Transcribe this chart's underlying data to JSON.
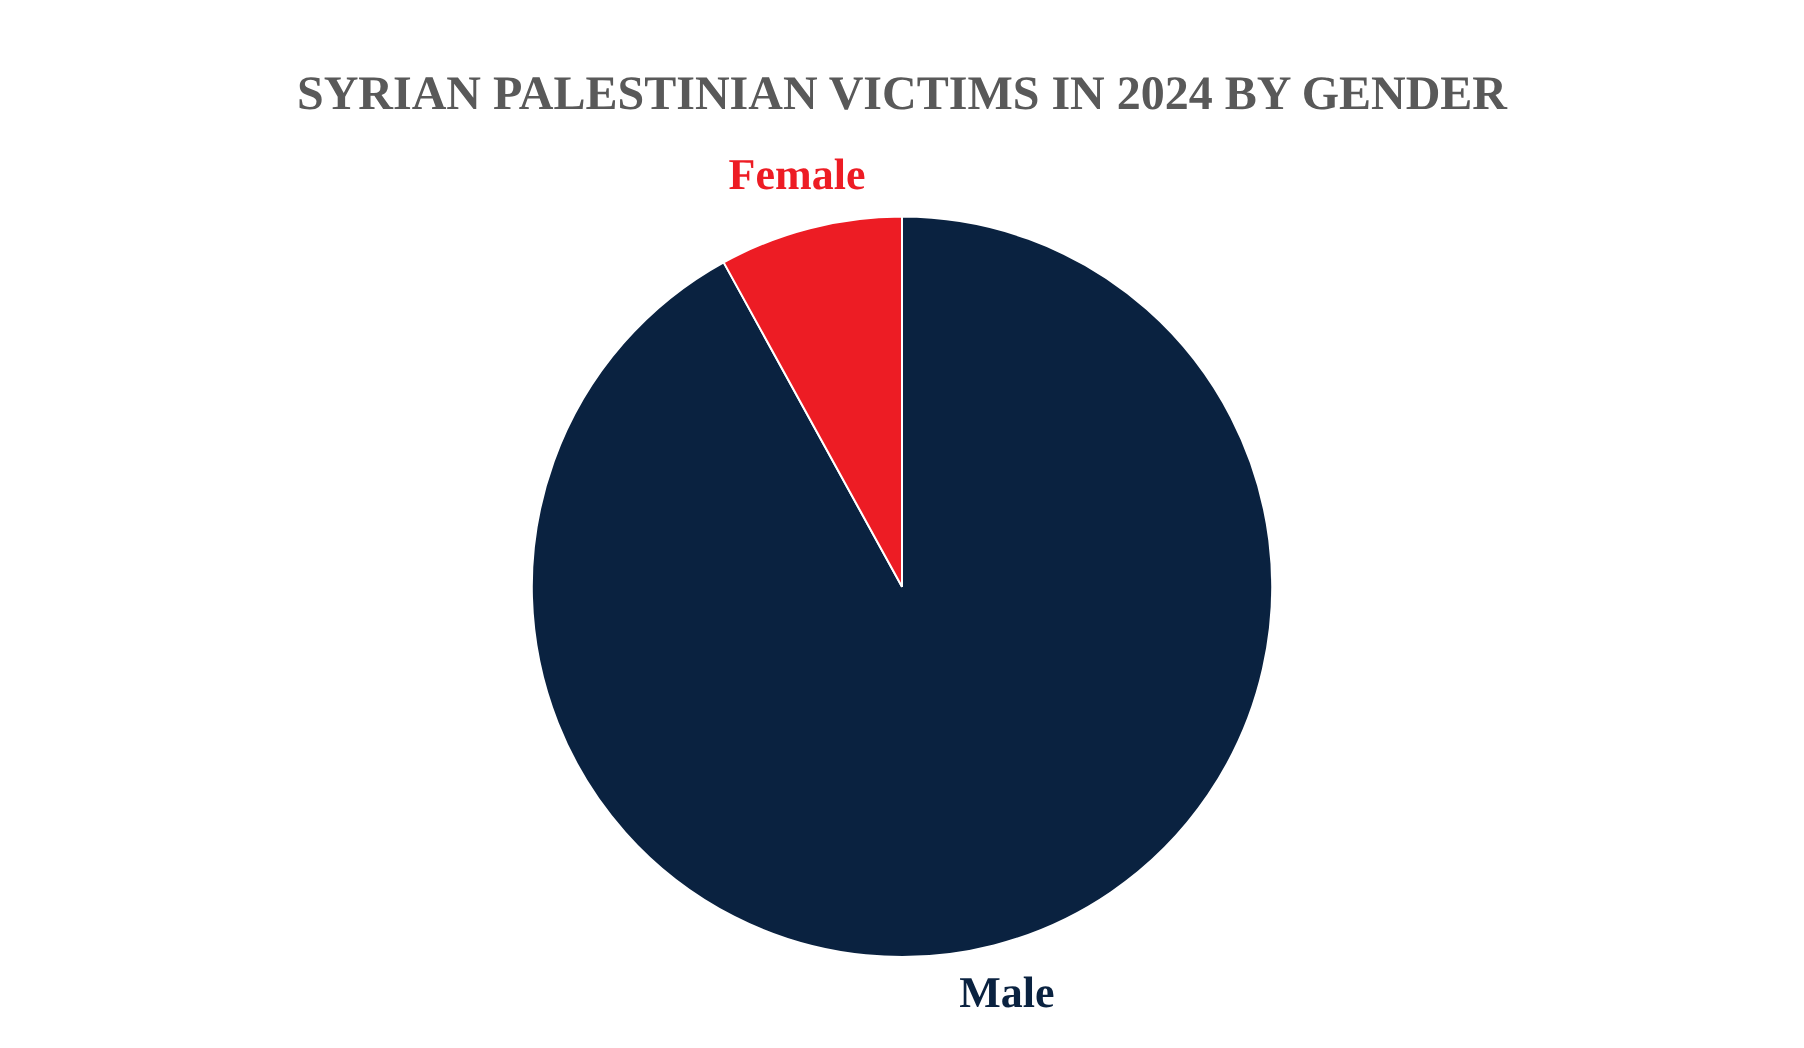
{
  "chart_data": {
    "type": "pie",
    "title": "SYRIAN PALESTINIAN VICTIMS IN 2024 BY GENDER",
    "categories": [
      "Male",
      "Female"
    ],
    "values": [
      92,
      8
    ],
    "colors": [
      "#0a2240",
      "#ed1c24"
    ],
    "legend": false
  }
}
